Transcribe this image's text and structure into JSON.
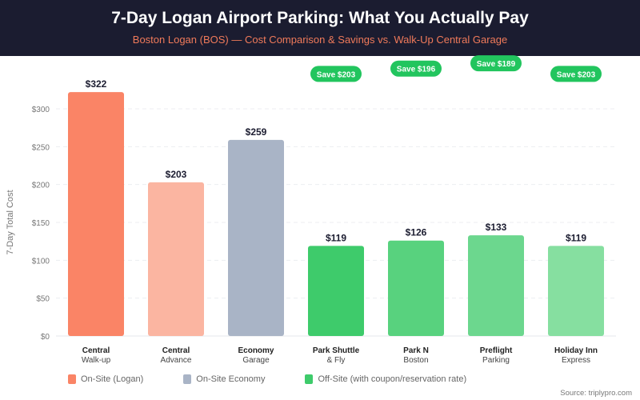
{
  "header": {
    "title": "7-Day Logan Airport Parking: What You Actually Pay",
    "subtitle": "Boston Logan (BOS) — Cost Comparison & Savings vs. Walk-Up Central Garage"
  },
  "chart_data": {
    "type": "bar",
    "title": "7-Day Logan Airport Parking: What You Actually Pay",
    "ylabel": "7-Day Total Cost",
    "ylim": [
      0,
      320
    ],
    "yticks": [
      "$0",
      "$50",
      "$100",
      "$150",
      "$200",
      "$250",
      "$300"
    ],
    "ytick_values": [
      0,
      50,
      100,
      150,
      200,
      250,
      300
    ],
    "grid": true,
    "categories": [
      [
        "Central",
        "Walk-up"
      ],
      [
        "Central",
        "Advance"
      ],
      [
        "Economy",
        "Garage"
      ],
      [
        "Park Shuttle",
        "& Fly"
      ],
      [
        "Park N",
        "Boston"
      ],
      [
        "Preflight",
        "Parking"
      ],
      [
        "Holiday Inn",
        "Express"
      ]
    ],
    "values": [
      322,
      203,
      259,
      119,
      126,
      133,
      119
    ],
    "data_labels": [
      "$322",
      "$203",
      "$259",
      "$119",
      "$126",
      "$133",
      "$119"
    ],
    "colors": [
      "#fa8466",
      "#fbb5a1",
      "#a9b4c6",
      "#3ecb6b",
      "#58d27e",
      "#6cd78e",
      "#86dfa0"
    ],
    "savings_badges": [
      null,
      null,
      null,
      "Save $203",
      "Save $196",
      "Save $189",
      "Save $203"
    ],
    "badge_color": "#22c55e"
  },
  "legend": [
    {
      "label": "On-Site (Logan)",
      "color": "#fa8466"
    },
    {
      "label": "On-Site Economy",
      "color": "#a9b4c6"
    },
    {
      "label": "Off-Site (with coupon/reservation rate)",
      "color": "#3ecb6b"
    }
  ],
  "source": "Source: triplypro.com"
}
